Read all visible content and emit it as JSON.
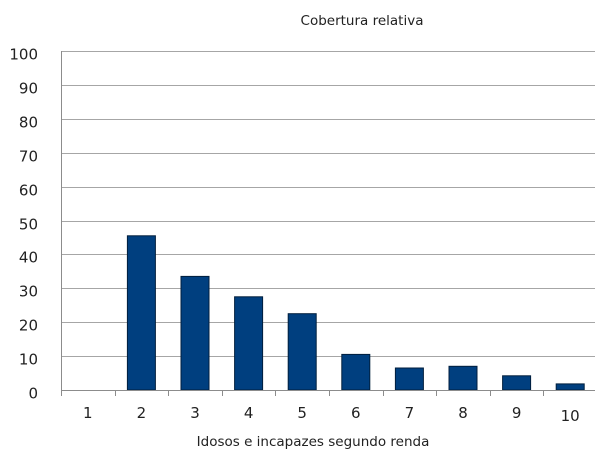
{
  "chart_data": {
    "type": "bar",
    "title": "Cobertura relativa",
    "xlabel": "Idosos e incapazes segundo renda",
    "ylabel": "",
    "categories": [
      "1",
      "2",
      "3",
      "4",
      "5",
      "6",
      "7",
      "8",
      "9",
      "10"
    ],
    "values": [
      0,
      45.5,
      33.5,
      27.5,
      22.5,
      10.5,
      6.5,
      7,
      4.2,
      1.8
    ],
    "ylim": [
      0,
      100
    ],
    "yticks": [
      0,
      10,
      20,
      30,
      40,
      50,
      60,
      70,
      80,
      90,
      100
    ],
    "grid": true,
    "legend": "none",
    "colors": {
      "bar": "#003f7f",
      "bar_edge": "#001e3d",
      "grid": "#a6a6a6",
      "axis": "#8c8c8c"
    }
  }
}
